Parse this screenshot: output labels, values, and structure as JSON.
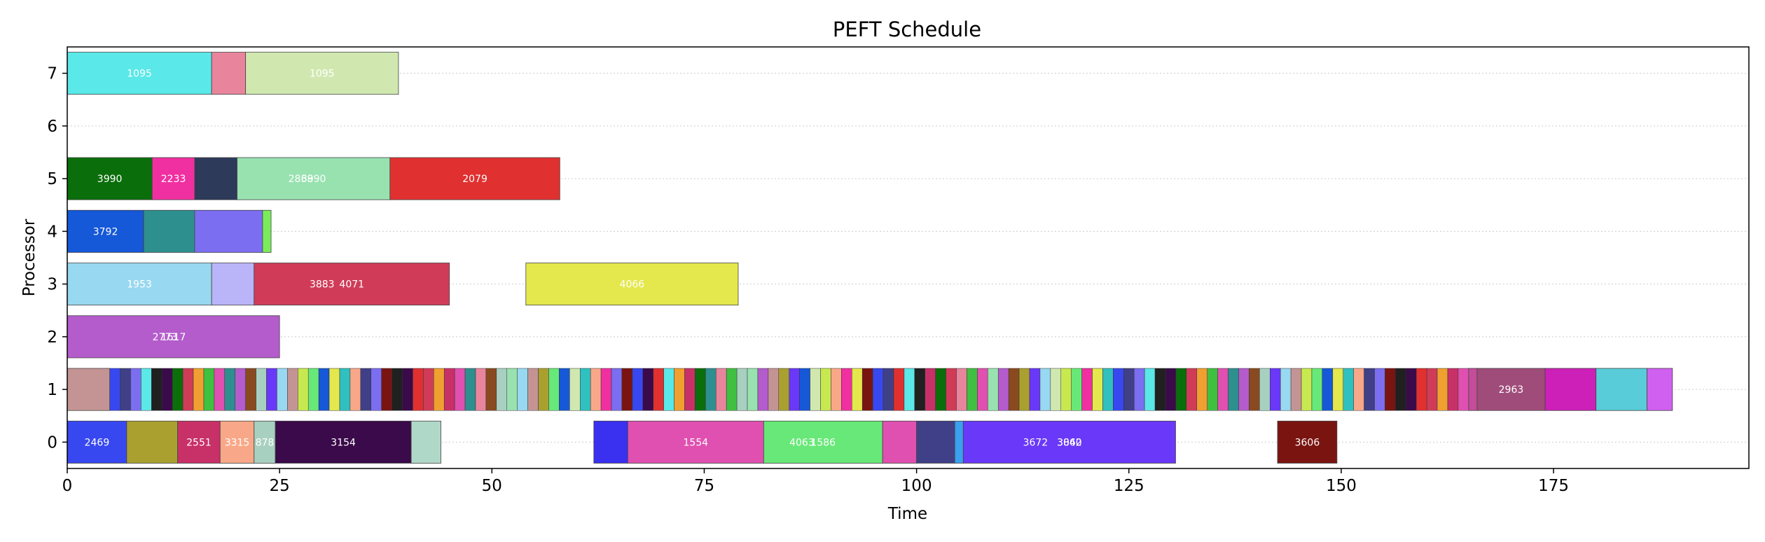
{
  "chart_data": {
    "type": "gantt",
    "title": "PEFT Schedule",
    "xlabel": "Time",
    "ylabel": "Processor",
    "xlim": [
      0,
      198
    ],
    "ylim": [
      -0.5,
      7.5
    ],
    "xticks": [
      0,
      25,
      50,
      75,
      100,
      125,
      150,
      175
    ],
    "yticks": [
      0,
      1,
      2,
      3,
      4,
      5,
      6,
      7
    ],
    "grid": "horizontal dotted",
    "tasks": [
      {
        "processor": 7,
        "start": 0,
        "end": 17,
        "color": "#5ae8e8",
        "label": "1095"
      },
      {
        "processor": 7,
        "start": 17,
        "end": 21,
        "color": "#e8859c",
        "label": ""
      },
      {
        "processor": 7,
        "start": 21,
        "end": 39,
        "color": "#d0e8b0",
        "label": "1095"
      },
      {
        "processor": 5,
        "start": 0,
        "end": 10,
        "color": "#0a6e0a",
        "label": "3990"
      },
      {
        "processor": 5,
        "start": 10,
        "end": 15,
        "color": "#f030a0",
        "label": "2233"
      },
      {
        "processor": 5,
        "start": 15,
        "end": 20,
        "color": "#2d3a5a",
        "label": ""
      },
      {
        "processor": 5,
        "start": 20,
        "end": 38,
        "color": "#98e2b0",
        "label": "3990"
      },
      {
        "processor": 5,
        "start": 27.5,
        "end": 27.5,
        "color": "#98e2b0",
        "label": "2868"
      },
      {
        "processor": 5,
        "start": 38,
        "end": 58,
        "color": "#e03030",
        "label": "2079"
      },
      {
        "processor": 4,
        "start": 0,
        "end": 9,
        "color": "#1558d8",
        "label": "3792"
      },
      {
        "processor": 4,
        "start": 9,
        "end": 15,
        "color": "#2e8f8f",
        "label": ""
      },
      {
        "processor": 4,
        "start": 15,
        "end": 23,
        "color": "#7b6ef0",
        "label": ""
      },
      {
        "processor": 4,
        "start": 23,
        "end": 24,
        "color": "#7aec5a",
        "label": ""
      },
      {
        "processor": 3,
        "start": 0,
        "end": 17,
        "color": "#98d8f0",
        "label": "1953"
      },
      {
        "processor": 3,
        "start": 17,
        "end": 22,
        "color": "#bab4f8",
        "label": ""
      },
      {
        "processor": 3,
        "start": 22,
        "end": 45,
        "color": "#d03c58",
        "label": "4071"
      },
      {
        "processor": 3,
        "start": 30,
        "end": 30,
        "color": "#d03c58",
        "label": "3883"
      },
      {
        "processor": 3,
        "start": 54,
        "end": 79,
        "color": "#e4e84c",
        "label": "4066"
      },
      {
        "processor": 2,
        "start": 0,
        "end": 25,
        "color": "#b45ccc",
        "label": "1617"
      },
      {
        "processor": 2,
        "start": 11.5,
        "end": 11.5,
        "color": "#b45ccc",
        "label": "2773"
      },
      {
        "processor": 0,
        "start": 0,
        "end": 7,
        "color": "#3848f0",
        "label": "2469"
      },
      {
        "processor": 0,
        "start": 7,
        "end": 13,
        "color": "#aaa030",
        "label": ""
      },
      {
        "processor": 0,
        "start": 13,
        "end": 18,
        "color": "#c83068",
        "label": "2551"
      },
      {
        "processor": 0,
        "start": 18,
        "end": 22,
        "color": "#f8a888",
        "label": "3315"
      },
      {
        "processor": 0,
        "start": 22,
        "end": 24.5,
        "color": "#a8d0c0",
        "label": "878"
      },
      {
        "processor": 0,
        "start": 24.5,
        "end": 40.5,
        "color": "#3a0a4a",
        "label": "3154"
      },
      {
        "processor": 0,
        "start": 40.5,
        "end": 44,
        "color": "#b0d8c8",
        "label": ""
      },
      {
        "processor": 0,
        "start": 62,
        "end": 66,
        "color": "#3a30f0",
        "label": ""
      },
      {
        "processor": 0,
        "start": 66,
        "end": 82,
        "color": "#e050b0",
        "label": "1554"
      },
      {
        "processor": 0,
        "start": 82,
        "end": 96,
        "color": "#68e878",
        "label": "1586"
      },
      {
        "processor": 0,
        "start": 86.5,
        "end": 86.5,
        "color": "#68e878",
        "label": "4063"
      },
      {
        "processor": 0,
        "start": 96,
        "end": 100,
        "color": "#e050b0",
        "label": ""
      },
      {
        "processor": 0,
        "start": 100,
        "end": 104.5,
        "color": "#404088",
        "label": ""
      },
      {
        "processor": 0,
        "start": 104.5,
        "end": 105.5,
        "color": "#3aa0f0",
        "label": ""
      },
      {
        "processor": 0,
        "start": 105.5,
        "end": 130.5,
        "color": "#6a38f8",
        "label": "3060"
      },
      {
        "processor": 0,
        "start": 114,
        "end": 114,
        "color": "#6a38f8",
        "label": "3672"
      },
      {
        "processor": 0,
        "start": 118,
        "end": 118,
        "color": "#6a38f8",
        "label": "3842"
      },
      {
        "processor": 0,
        "start": 142.5,
        "end": 149.5,
        "color": "#7a1410",
        "label": "3606"
      },
      {
        "processor": 1,
        "start": 0,
        "end": 5,
        "color": "#c49494",
        "label": ""
      },
      {
        "processor": 1,
        "start": 165,
        "end": 166,
        "color": "#c44d9a",
        "label": ""
      },
      {
        "processor": 1,
        "start": 166,
        "end": 174,
        "color": "#a04c7a",
        "label": "2963"
      },
      {
        "processor": 1,
        "start": 174,
        "end": 180,
        "color": "#cc20b8",
        "label": ""
      },
      {
        "processor": 1,
        "start": 180,
        "end": 186,
        "color": "#58ccd8",
        "label": ""
      },
      {
        "processor": 1,
        "start": 186,
        "end": 189,
        "color": "#d060f0",
        "label": ""
      }
    ],
    "processor1_stripes": {
      "start": 5,
      "end": 165,
      "count": 130,
      "palette": [
        "#3848f0",
        "#aaa030",
        "#c83068",
        "#f8a888",
        "#a8d0c0",
        "#3a0a4a",
        "#68e878",
        "#e050b0",
        "#404088",
        "#6a38f8",
        "#0a6e0a",
        "#f030a0",
        "#98e2b0",
        "#e03030",
        "#1558d8",
        "#2e8f8f",
        "#7b6ef0",
        "#98d8f0",
        "#d03c58",
        "#e4e84c",
        "#b45ccc",
        "#5ae8e8",
        "#d0e8b0",
        "#e8859c",
        "#7a1410",
        "#c49494",
        "#f0a030",
        "#30c0c0",
        "#8a4a20",
        "#202020",
        "#c8e850",
        "#40c040"
      ]
    }
  }
}
